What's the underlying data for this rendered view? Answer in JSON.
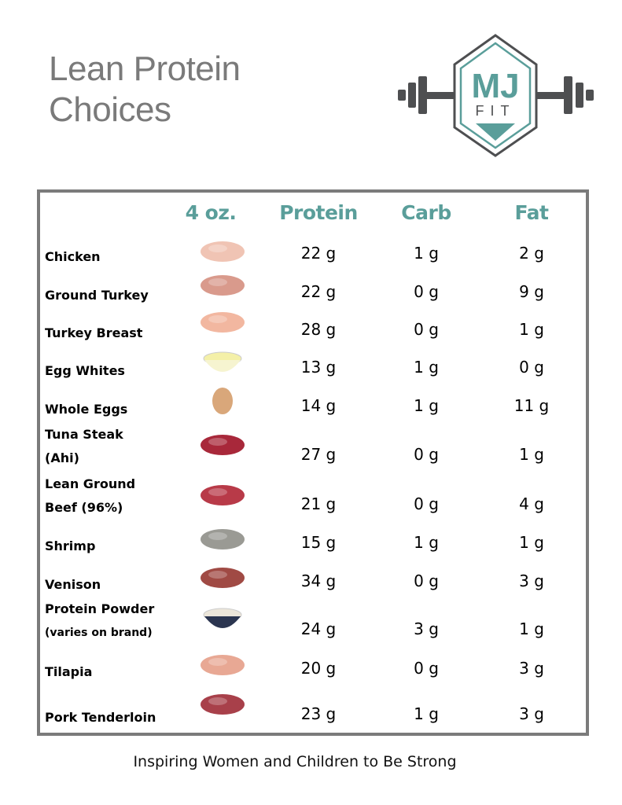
{
  "title": {
    "line1": "Lean Protein",
    "line2": "Choices"
  },
  "logo": {
    "text_top": "MJ",
    "text_bottom": "FIT",
    "brand_color": "#5a9e9a",
    "gray": "#4e4f51"
  },
  "headers": {
    "serving": "4 oz.",
    "protein": "Protein",
    "carb": "Carb",
    "fat": "Fat"
  },
  "rows": [
    {
      "name": "Chicken",
      "name2": "",
      "protein": "22 g",
      "carb": "1 g",
      "fat": "2 g",
      "icon": "chicken-breast-icon",
      "color": "#f0c4b4"
    },
    {
      "name": "Ground Turkey",
      "name2": "",
      "protein": "22 g",
      "carb": "0 g",
      "fat": "9 g",
      "icon": "ground-turkey-icon",
      "color": "#d99a8c"
    },
    {
      "name": "Turkey Breast",
      "name2": "",
      "protein": "28 g",
      "carb": "0 g",
      "fat": "1 g",
      "icon": "turkey-breast-icon",
      "color": "#f2b7a0"
    },
    {
      "name": "Egg Whites",
      "name2": "",
      "protein": "13 g",
      "carb": "1 g",
      "fat": "0 g",
      "icon": "egg-whites-icon",
      "color": "#f4f0a8"
    },
    {
      "name": "Whole Eggs",
      "name2": "",
      "protein": "14 g",
      "carb": "1 g",
      "fat": "11 g",
      "icon": "egg-icon",
      "color": "#d9a77a"
    },
    {
      "name": "Tuna Steak",
      "name2": "(Ahi)",
      "protein": "27 g",
      "carb": "0 g",
      "fat": "1 g",
      "icon": "tuna-steak-icon",
      "color": "#a8283a"
    },
    {
      "name": "Lean Ground",
      "name2": "Beef (96%)",
      "protein": "21 g",
      "carb": "0 g",
      "fat": "4 g",
      "icon": "ground-beef-icon",
      "color": "#b83a48"
    },
    {
      "name": "Shrimp",
      "name2": "",
      "protein": "15 g",
      "carb": "1 g",
      "fat": "1 g",
      "icon": "shrimp-icon",
      "color": "#9a9a94"
    },
    {
      "name": "Venison",
      "name2": "",
      "protein": "34 g",
      "carb": "0 g",
      "fat": "3 g",
      "icon": "venison-icon",
      "color": "#a04a44"
    },
    {
      "name": "Protein Powder",
      "name2": "(varies on brand)",
      "protein": "24 g",
      "carb": "3 g",
      "fat": "1 g",
      "icon": "protein-powder-icon",
      "color": "#ece6da"
    },
    {
      "name": "Tilapia",
      "name2": "",
      "protein": "20 g",
      "carb": "0 g",
      "fat": "3 g",
      "icon": "tilapia-icon",
      "color": "#e8a894"
    },
    {
      "name": "Pork Tenderloin",
      "name2": "",
      "protein": "23 g",
      "carb": "1 g",
      "fat": "3 g",
      "icon": "pork-tenderloin-icon",
      "color": "#a8404a"
    }
  ],
  "footer": "Inspiring Women and Children to Be Strong"
}
